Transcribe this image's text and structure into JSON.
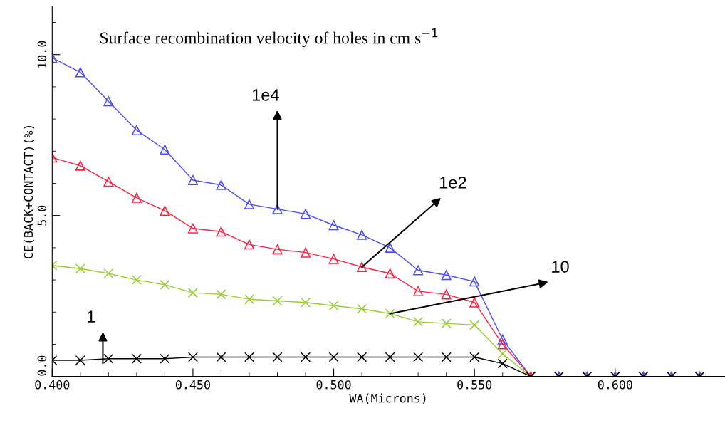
{
  "chart_data": {
    "type": "line",
    "title": "Surface recombination velocity of holes in cm s$^{−1}$",
    "xlabel": "WA(Microns)",
    "ylabel": "CE(BACK+CONTACT)(%)",
    "x": [
      0.4,
      0.41,
      0.42,
      0.43,
      0.44,
      0.45,
      0.46,
      0.47,
      0.48,
      0.49,
      0.5,
      0.51,
      0.52,
      0.53,
      0.54,
      0.55,
      0.56,
      0.57,
      0.58,
      0.59,
      0.6,
      0.61,
      0.62,
      0.63
    ],
    "series": [
      {
        "color": "#4b4bff",
        "marker": "triangle",
        "values": [
          9.9,
          9.45,
          8.55,
          7.65,
          7.05,
          6.1,
          5.95,
          5.35,
          5.2,
          5.05,
          4.7,
          4.4,
          4.0,
          3.3,
          3.15,
          2.95,
          1.15,
          0,
          0,
          0,
          0,
          0,
          0,
          0
        ]
      },
      {
        "color": "#ff2040",
        "marker": "triangle",
        "values": [
          6.8,
          6.55,
          6.05,
          5.55,
          5.15,
          4.6,
          4.5,
          4.1,
          3.95,
          3.85,
          3.65,
          3.4,
          3.2,
          2.65,
          2.55,
          2.3,
          1.0,
          0,
          null,
          null,
          null,
          null,
          null,
          null
        ]
      },
      {
        "color": "#99cc33",
        "marker": "cross",
        "values": [
          3.45,
          3.35,
          3.2,
          3.0,
          2.85,
          2.6,
          2.55,
          2.4,
          2.35,
          2.3,
          2.2,
          2.1,
          1.95,
          1.7,
          1.65,
          1.6,
          0.7,
          0,
          null,
          null,
          null,
          null,
          null,
          null
        ]
      },
      {
        "color": "#000000",
        "marker": "cross",
        "values": [
          0.5,
          0.5,
          0.55,
          0.55,
          0.55,
          0.6,
          0.6,
          0.6,
          0.6,
          0.6,
          0.6,
          0.6,
          0.6,
          0.6,
          0.6,
          0.6,
          0.4,
          0,
          0,
          0,
          0,
          0,
          0,
          0
        ]
      }
    ],
    "annotations": [
      {
        "text": "1e4",
        "x": 0.48,
        "y": 5.2
      },
      {
        "text": "1e2",
        "x": 0.51,
        "y": 3.4
      },
      {
        "text": "10",
        "x": 0.52,
        "y": 1.95
      },
      {
        "text": "1",
        "x": 0.418,
        "y": 0.4
      }
    ],
    "xlim": [
      0.4,
      0.639
    ],
    "ylim": [
      0,
      11.5
    ],
    "xticks": [
      {
        "value": 0.4,
        "label": "0.400"
      },
      {
        "value": 0.45,
        "label": "0.450"
      },
      {
        "value": 0.5,
        "label": "0.500"
      },
      {
        "value": 0.55,
        "label": "0.550"
      },
      {
        "value": 0.6,
        "label": "0.600"
      }
    ],
    "yticks": [
      {
        "value": 0,
        "label": "0.0"
      },
      {
        "value": 5,
        "label": "5.0"
      },
      {
        "value": 10,
        "label": "10.0"
      }
    ],
    "grid": false,
    "legend": false
  }
}
